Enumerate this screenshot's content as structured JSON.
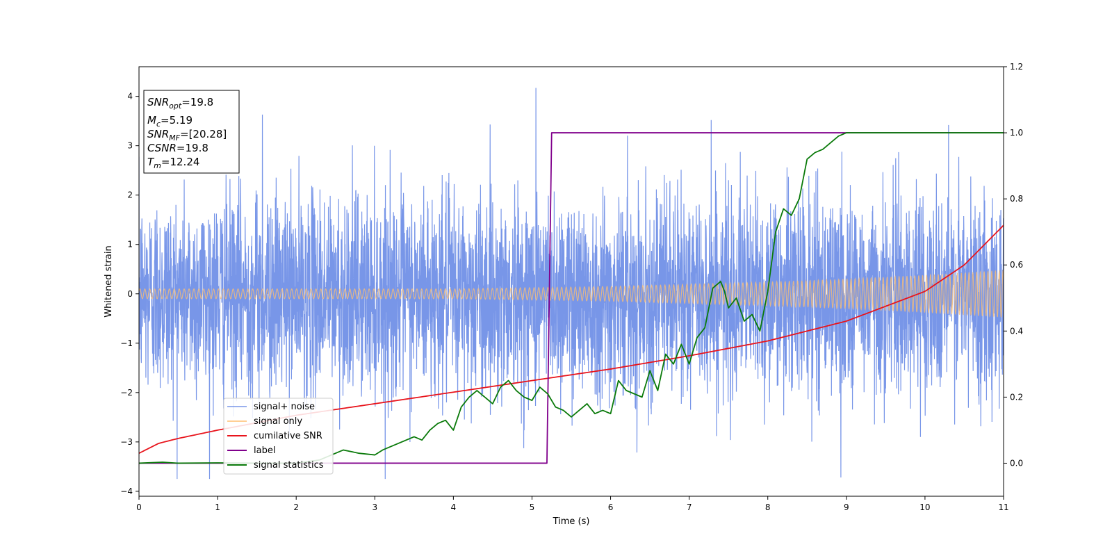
{
  "chart_data": {
    "type": "line",
    "title": "",
    "xlabel": "Time (s)",
    "ylabel": "Whitened strain",
    "xlim": [
      0,
      11
    ],
    "ylim": [
      -4.1,
      4.6
    ],
    "y2lim": [
      -0.1,
      1.2
    ],
    "xticks": [
      0,
      1,
      2,
      3,
      4,
      5,
      6,
      7,
      8,
      9,
      10,
      11
    ],
    "yticks": [
      -4,
      -3,
      -2,
      -1,
      0,
      1,
      2,
      3,
      4
    ],
    "y2ticks": [
      0.0,
      0.2,
      0.4,
      0.6,
      0.8,
      1.0,
      1.2
    ],
    "legend_position": "lower-left",
    "annotation": {
      "lines": [
        {
          "main": "SNR",
          "sub": "opt",
          "rest": "=19.8"
        },
        {
          "main": "M",
          "sub": "c",
          "rest": "=5.19"
        },
        {
          "main": "SNR",
          "sub": "MF",
          "rest": "=[20.28]"
        },
        {
          "main": "CSNR",
          "sub": "",
          "rest": "=19.8"
        },
        {
          "main": "T",
          "sub": "m",
          "rest": "=12.24"
        }
      ]
    },
    "series": [
      {
        "name": "signal+ noise",
        "color": "#7896e8",
        "axis": "left",
        "kind": "noise",
        "envelope_std": 1.0,
        "notable_spikes": [
          [
            1.57,
            3.63
          ],
          [
            5.05,
            4.17
          ],
          [
            8.93,
            -3.72
          ],
          [
            7.28,
            3.52
          ],
          [
            10.3,
            3.42
          ]
        ]
      },
      {
        "name": "signal only",
        "color": "#ffbf70",
        "axis": "left",
        "kind": "chirp",
        "amplitude_points": [
          [
            0,
            0.1
          ],
          [
            4,
            0.1
          ],
          [
            6,
            0.15
          ],
          [
            8,
            0.24
          ],
          [
            9,
            0.3
          ],
          [
            10,
            0.38
          ],
          [
            11,
            0.48
          ]
        ]
      },
      {
        "name": "cumilative SNR",
        "color": "#e8141c",
        "axis": "right",
        "x": [
          0,
          0.25,
          0.5,
          1,
          2,
          3,
          4,
          5,
          6,
          7,
          8,
          9,
          10,
          10.5,
          11
        ],
        "y": [
          0.03,
          0.06,
          0.075,
          0.1,
          0.145,
          0.18,
          0.215,
          0.25,
          0.285,
          0.325,
          0.37,
          0.43,
          0.52,
          0.6,
          0.72
        ]
      },
      {
        "name": "label",
        "color": "#80008c",
        "axis": "right",
        "x": [
          0,
          5.19,
          5.25,
          11
        ],
        "y": [
          0,
          0,
          1,
          1
        ]
      },
      {
        "name": "signal statistics",
        "color": "#0a7a0a",
        "axis": "right",
        "x": [
          0,
          0.3,
          0.5,
          1,
          1.5,
          2,
          2.3,
          2.4,
          2.6,
          2.8,
          3.0,
          3.1,
          3.2,
          3.3,
          3.5,
          3.6,
          3.7,
          3.8,
          3.9,
          4.0,
          4.1,
          4.2,
          4.3,
          4.4,
          4.5,
          4.6,
          4.7,
          4.8,
          4.9,
          5.0,
          5.1,
          5.2,
          5.3,
          5.4,
          5.5,
          5.6,
          5.7,
          5.8,
          5.9,
          6.0,
          6.1,
          6.2,
          6.3,
          6.4,
          6.5,
          6.6,
          6.7,
          6.8,
          6.9,
          7.0,
          7.1,
          7.2,
          7.3,
          7.4,
          7.45,
          7.5,
          7.6,
          7.7,
          7.8,
          7.9,
          8.0,
          8.1,
          8.2,
          8.3,
          8.4,
          8.5,
          8.6,
          8.7,
          8.8,
          8.9,
          9.0,
          9.2,
          9.5,
          10.0,
          11.0
        ],
        "y": [
          0,
          0.003,
          0.0,
          0.001,
          0.0,
          0.0,
          0.01,
          0.02,
          0.04,
          0.03,
          0.025,
          0.04,
          0.05,
          0.06,
          0.08,
          0.07,
          0.1,
          0.12,
          0.13,
          0.1,
          0.17,
          0.2,
          0.22,
          0.2,
          0.18,
          0.23,
          0.25,
          0.22,
          0.2,
          0.19,
          0.23,
          0.21,
          0.17,
          0.16,
          0.14,
          0.16,
          0.18,
          0.15,
          0.16,
          0.15,
          0.25,
          0.22,
          0.21,
          0.2,
          0.28,
          0.22,
          0.33,
          0.3,
          0.36,
          0.3,
          0.38,
          0.41,
          0.53,
          0.55,
          0.52,
          0.47,
          0.5,
          0.43,
          0.45,
          0.4,
          0.52,
          0.7,
          0.77,
          0.75,
          0.8,
          0.92,
          0.94,
          0.95,
          0.97,
          0.99,
          1.0,
          1.0,
          1.0,
          1.0,
          1.0
        ]
      }
    ]
  }
}
